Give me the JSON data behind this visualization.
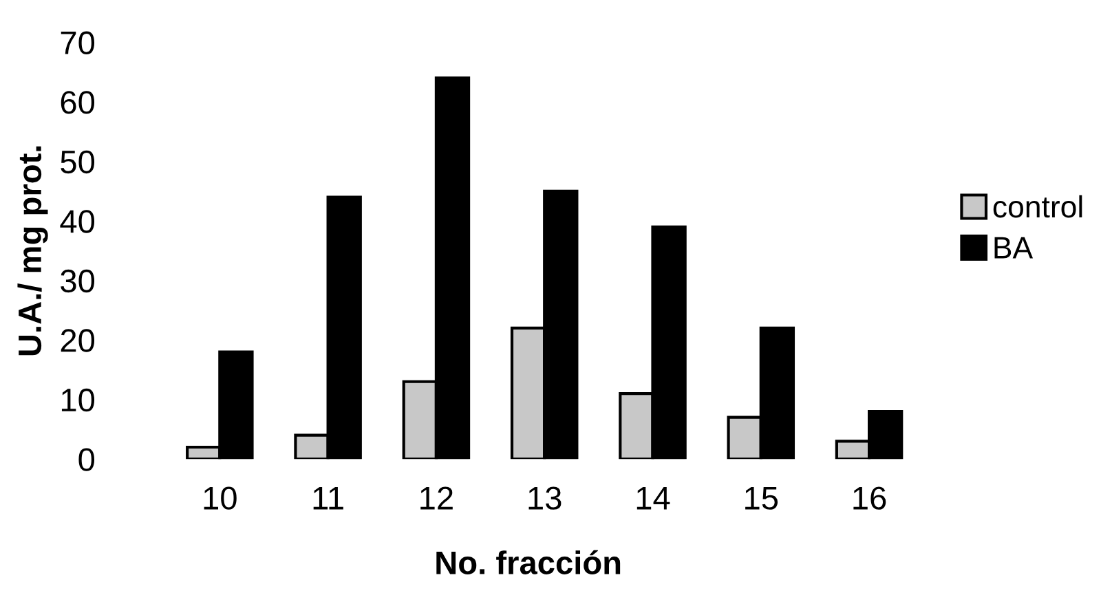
{
  "chart_data": {
    "type": "bar",
    "xlabel": "No. fracción",
    "ylabel": "U.A./ mg prot.",
    "categories": [
      "10",
      "11",
      "12",
      "13",
      "14",
      "15",
      "16"
    ],
    "series": [
      {
        "name": "control",
        "color": "#c8c8c8",
        "values": [
          2,
          4,
          13,
          22,
          11,
          7,
          3
        ]
      },
      {
        "name": "BA",
        "color": "#000000",
        "values": [
          18,
          44,
          64,
          45,
          39,
          22,
          8
        ]
      }
    ],
    "ylim": [
      0,
      70
    ],
    "yticks": [
      0,
      10,
      20,
      30,
      40,
      50,
      60,
      70
    ],
    "grid": false,
    "legend": "right"
  }
}
